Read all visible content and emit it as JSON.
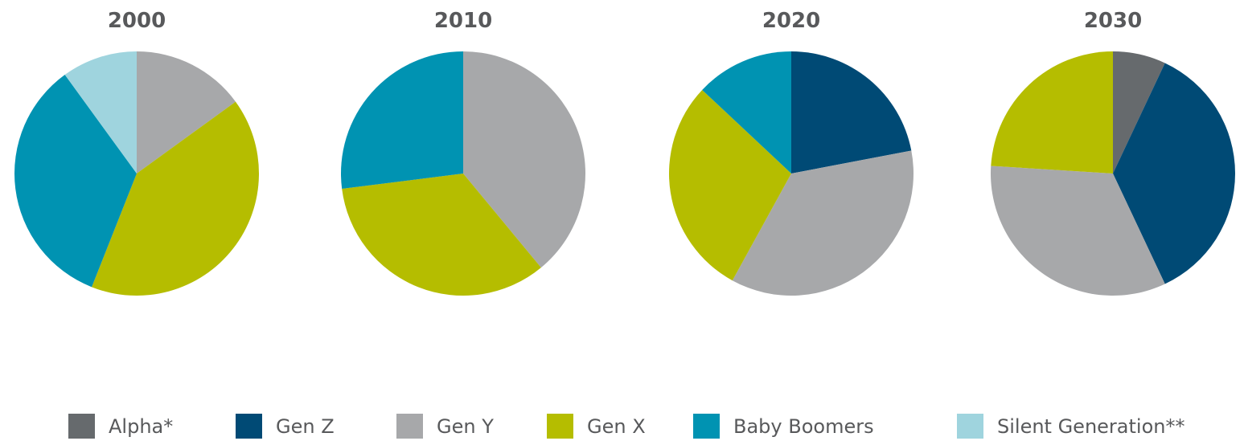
{
  "chart_data": [
    {
      "type": "pie",
      "title": "2000",
      "categories": [
        "Gen Y",
        "Gen X",
        "Baby Boomers",
        "Silent Generation**"
      ],
      "values": [
        15,
        41,
        34,
        10
      ]
    },
    {
      "type": "pie",
      "title": "2010",
      "categories": [
        "Gen Y",
        "Gen X",
        "Baby Boomers"
      ],
      "values": [
        39,
        34,
        27
      ]
    },
    {
      "type": "pie",
      "title": "2020",
      "categories": [
        "Gen Z",
        "Gen Y",
        "Gen X",
        "Baby Boomers"
      ],
      "values": [
        22,
        36,
        29,
        13
      ]
    },
    {
      "type": "pie",
      "title": "2030",
      "categories": [
        "Alpha*",
        "Gen Z",
        "Gen Y",
        "Gen X"
      ],
      "values": [
        7,
        36,
        33,
        24
      ]
    }
  ],
  "legend": {
    "items": [
      {
        "name": "Alpha*",
        "color": "#666a6d"
      },
      {
        "name": "Gen Z",
        "color": "#004a75"
      },
      {
        "name": "Gen Y",
        "color": "#a7a8aa"
      },
      {
        "name": "Gen X",
        "color": "#b5bd00"
      },
      {
        "name": "Baby Boomers",
        "color": "#0093b2"
      },
      {
        "name": "Silent Generation**",
        "color": "#9fd4de"
      }
    ]
  }
}
